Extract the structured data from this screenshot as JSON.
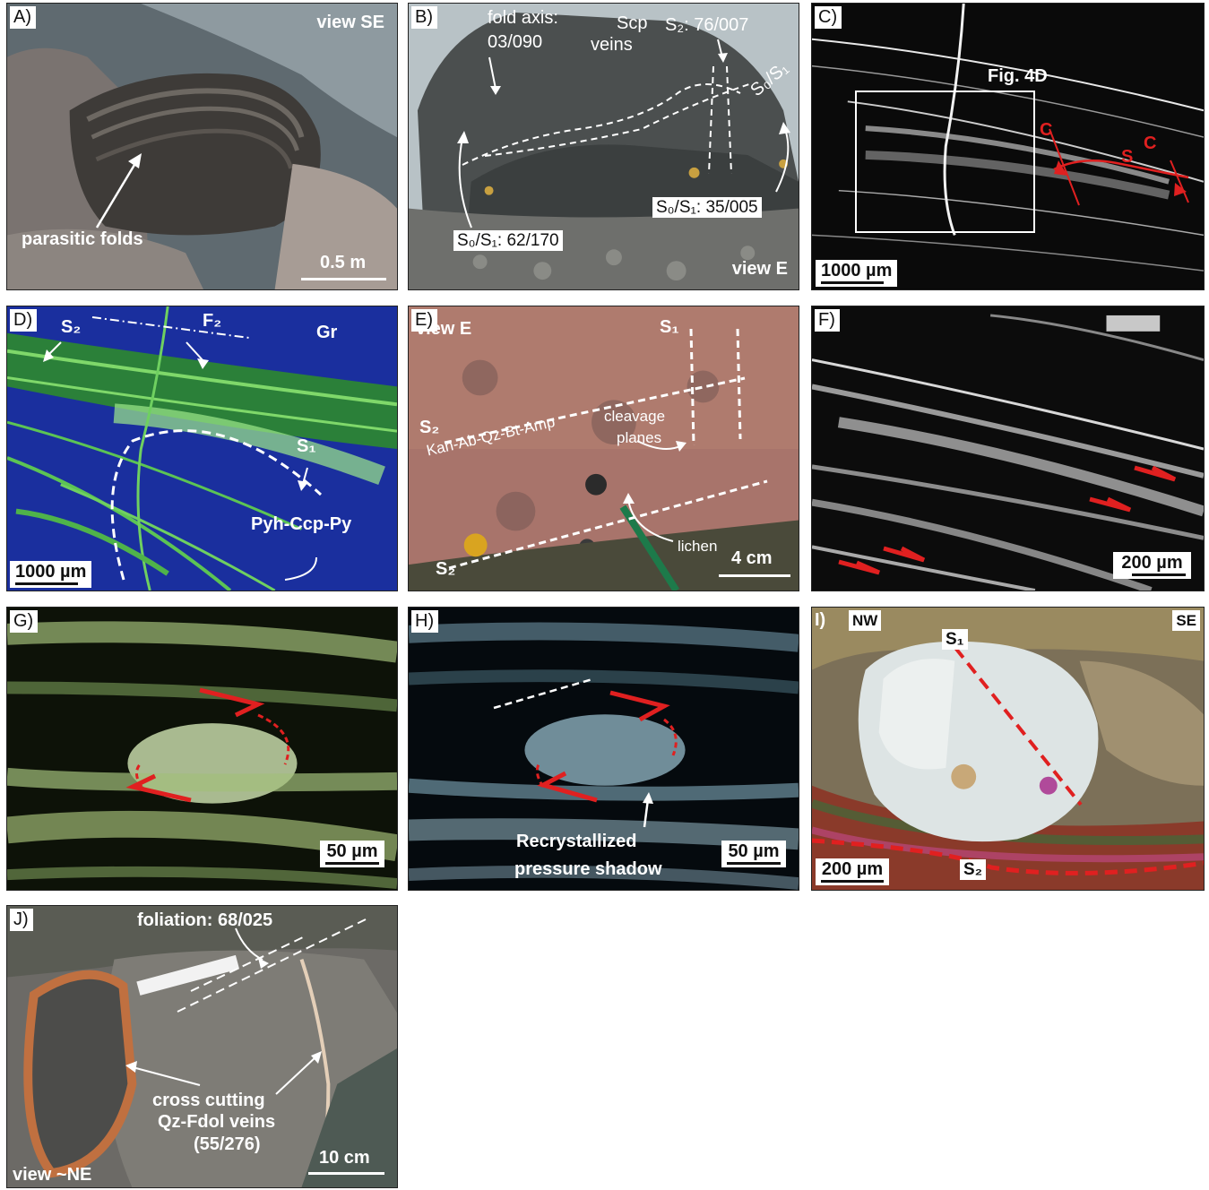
{
  "panels": {
    "A": {
      "label": "A)",
      "view": "view SE",
      "annotation": "parasitic folds",
      "scale": "0.5 m"
    },
    "B": {
      "label": "B)",
      "fold_axis_label": "fold axis:",
      "fold_axis_value": "03/090",
      "scp_1": "Scp",
      "scp_2": "veins",
      "s2": "S₂: 76/007",
      "s0s1": "S₀/S₁",
      "s0s1_right": "S₀/S₁: 35/005",
      "s0s1_left": "S₀/S₁: 62/170",
      "view": "view E"
    },
    "C": {
      "label": "C)",
      "fig": "Fig. 4D",
      "c1": "C",
      "s": "S",
      "c2": "C",
      "scale": "1000 µm"
    },
    "D": {
      "label": "D)",
      "s2": "S₂",
      "f2": "F₂",
      "gr": "Gr",
      "s1": "S₁",
      "minerals": "Pyh-Ccp-Py",
      "scale": "1000 µm"
    },
    "E": {
      "label": "E)",
      "view": "view E",
      "s1": "S₁",
      "s2_top": "S₂",
      "assemblage": "Kan-Ab-Qz-Bt-Amp",
      "cleavage_1": "cleavage",
      "cleavage_2": "planes",
      "lichen": "lichen",
      "s2_bottom": "S₂",
      "scale": "4 cm"
    },
    "F": {
      "label": "F)",
      "scale": "200 µm"
    },
    "G": {
      "label": "G)",
      "scale": "50 µm"
    },
    "H": {
      "label": "H)",
      "caption_1": "Recrystallized",
      "caption_2": "pressure shadow",
      "scale": "50 µm"
    },
    "I": {
      "label": "I)",
      "nw": "NW",
      "se": "SE",
      "s1": "S₁",
      "s2": "S₂",
      "scale": "200 µm"
    },
    "J": {
      "label": "J)",
      "foliation": "foliation: 68/025",
      "veins_1": "cross cutting",
      "veins_2": "Qz-Fdol veins",
      "veins_3": "(55/276)",
      "view": "view ~NE",
      "scale": "10 cm"
    }
  },
  "colors": {
    "scale_box": "#ffffff",
    "shear_sense_arrows": "#e02020",
    "map_blue": "#1a2f9e",
    "map_green": "#7fd86a"
  }
}
